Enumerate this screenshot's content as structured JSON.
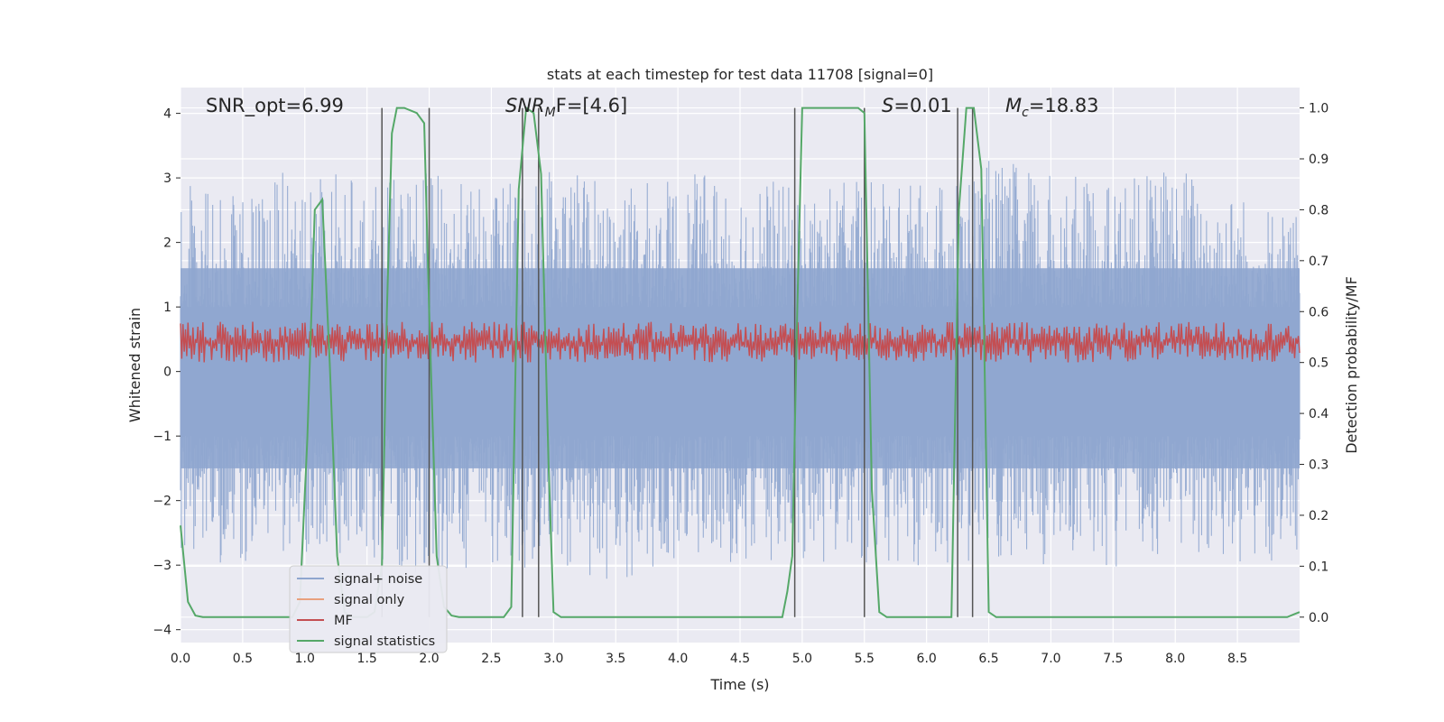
{
  "chart_data": {
    "type": "line",
    "title": "stats at each timestep for test data 11708 [signal=0]",
    "xlabel": "Time (s)",
    "ylabel": "Whitened strain",
    "ylabel_right": "Detection probability/MF",
    "xlim": [
      0.0,
      9.0
    ],
    "ylim": [
      -4.2,
      4.4
    ],
    "ylim_right": [
      -0.05,
      1.04
    ],
    "xticks": [
      "0.0",
      "0.5",
      "1.0",
      "1.5",
      "2.0",
      "2.5",
      "3.0",
      "3.5",
      "4.0",
      "4.5",
      "5.0",
      "5.5",
      "6.0",
      "6.5",
      "7.0",
      "7.5",
      "8.0",
      "8.5"
    ],
    "yticks": [
      "4",
      "3",
      "2",
      "1",
      "0",
      "−1",
      "−2",
      "−3",
      "−4"
    ],
    "yticks_right": [
      "1.0",
      "0.9",
      "0.8",
      "0.7",
      "0.6",
      "0.5",
      "0.4",
      "0.3",
      "0.2",
      "0.1",
      "0.0"
    ],
    "annotations": {
      "snr_opt": "SNR_opt=6.99",
      "snr_mf_base": "SNR",
      "snr_mf_sub": "M",
      "snr_mf_rest": "F=[4.6]",
      "s_sym": "S",
      "s_rest": "=0.01",
      "mc_base": "M",
      "mc_sub": "c",
      "mc_rest": "=18.83"
    },
    "legend": {
      "position": "lower-left",
      "entries": [
        "signal+ noise",
        "signal only",
        "MF",
        "signal statistics"
      ]
    },
    "colors": {
      "noise": "#8fa6cf",
      "signal_only": "#e8a07e",
      "mf": "#c44e52",
      "stats": "#55a868",
      "vlines": "#555555",
      "plot_bg": "#eaeaf2",
      "grid": "#ffffff"
    },
    "noise_envelope": {
      "x": [
        0.0,
        0.5,
        1.0,
        1.5,
        2.0,
        2.5,
        3.0,
        3.5,
        4.0,
        4.5,
        5.0,
        5.5,
        6.0,
        6.5,
        7.0,
        7.5,
        8.0,
        8.5,
        9.0
      ],
      "upper": [
        3.0,
        2.7,
        3.3,
        2.9,
        3.1,
        2.8,
        3.4,
        2.9,
        3.0,
        3.2,
        2.8,
        3.0,
        2.9,
        3.3,
        3.1,
        2.9,
        3.3,
        2.8,
        2.5
      ],
      "lower": [
        -2.9,
        -3.0,
        -2.8,
        -2.9,
        -3.2,
        -3.0,
        -3.1,
        -3.3,
        -2.9,
        -3.0,
        -2.9,
        -3.1,
        -3.0,
        -2.9,
        -3.0,
        -3.1,
        -2.8,
        -3.0,
        -2.9
      ]
    },
    "mf_band": {
      "low": 0.5,
      "mean": 0.54,
      "high": 0.58
    },
    "signal_statistics": {
      "x": [
        0.0,
        0.06,
        0.12,
        0.18,
        0.9,
        0.96,
        1.02,
        1.08,
        1.14,
        1.2,
        1.26,
        1.32,
        1.38,
        1.5,
        1.56,
        1.62,
        1.66,
        1.7,
        1.74,
        1.8,
        1.9,
        1.96,
        2.0,
        2.06,
        2.12,
        2.18,
        2.24,
        2.6,
        2.66,
        2.72,
        2.78,
        2.84,
        2.9,
        2.96,
        3.0,
        3.06,
        4.84,
        4.88,
        4.92,
        4.96,
        5.0,
        5.45,
        5.5,
        5.56,
        5.62,
        5.68,
        6.2,
        6.26,
        6.32,
        6.38,
        6.44,
        6.5,
        6.56,
        8.9,
        8.95,
        9.0
      ],
      "y": [
        0.18,
        0.03,
        0.003,
        0.0,
        0.0,
        0.03,
        0.35,
        0.8,
        0.82,
        0.5,
        0.12,
        0.01,
        0.0,
        0.0,
        0.01,
        0.1,
        0.6,
        0.95,
        1.0,
        1.0,
        0.99,
        0.97,
        0.6,
        0.12,
        0.02,
        0.003,
        0.0,
        0.0,
        0.02,
        0.84,
        1.0,
        0.99,
        0.87,
        0.3,
        0.01,
        0.0,
        0.0,
        0.05,
        0.12,
        0.6,
        1.0,
        1.0,
        0.99,
        0.25,
        0.01,
        0.0,
        0.0,
        0.8,
        1.0,
        1.0,
        0.88,
        0.01,
        0.0,
        0.0,
        0.005,
        0.01
      ]
    },
    "vlines_x": [
      1.62,
      2.0,
      2.75,
      2.88,
      4.94,
      5.5,
      6.25,
      6.37
    ]
  }
}
